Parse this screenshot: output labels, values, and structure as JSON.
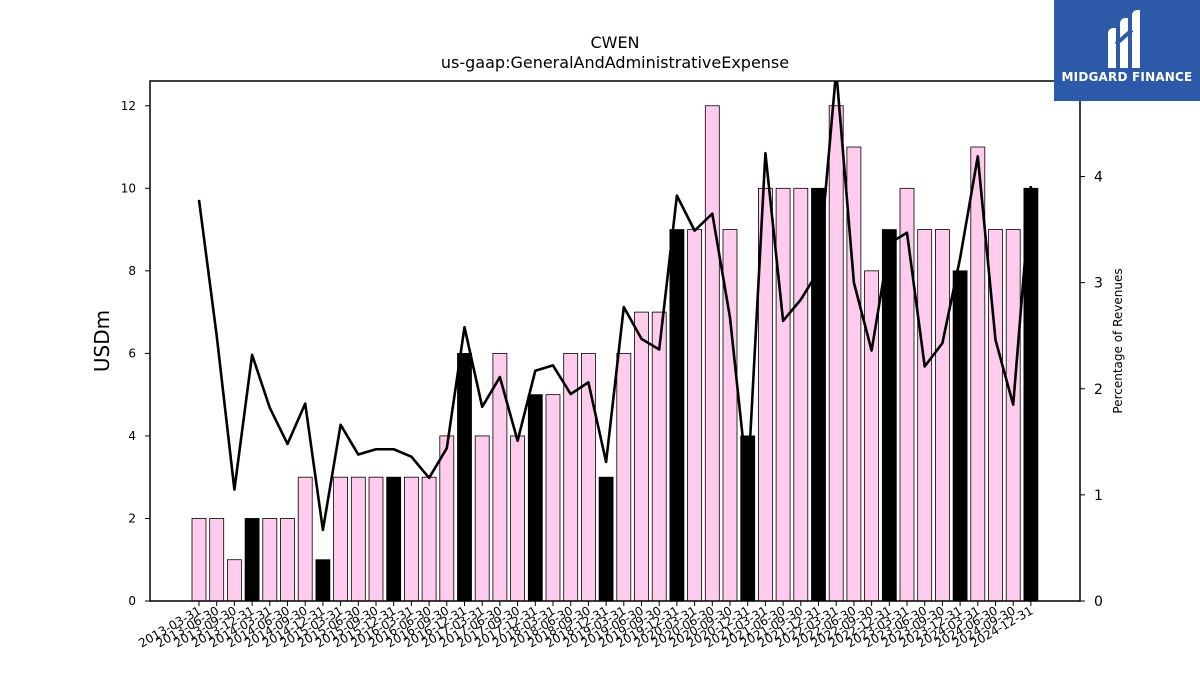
{
  "chart_data": {
    "type": "bar",
    "title": "CWEN",
    "subtitle": "us-gaap:GeneralAndAdministrativeExpense",
    "ylabel": "USDm",
    "y2label": "Percentage of Revenues",
    "ylim": [
      0,
      12.6
    ],
    "y2lim": [
      0,
      4.9
    ],
    "yticks": [
      0,
      2,
      4,
      6,
      8,
      10,
      12
    ],
    "y2ticks": [
      0,
      1,
      2,
      3,
      4
    ],
    "grid": false,
    "categories": [
      "2013-03-31",
      "2013-06-30",
      "2013-09-30",
      "2013-12-31",
      "2014-03-31",
      "2014-06-30",
      "2014-09-30",
      "2014-12-31",
      "2015-03-31",
      "2015-06-30",
      "2015-09-30",
      "2015-12-31",
      "2016-03-31",
      "2016-06-30",
      "2016-09-30",
      "2016-12-31",
      "2017-03-31",
      "2017-06-30",
      "2017-09-30",
      "2017-12-31",
      "2018-03-31",
      "2018-06-30",
      "2018-09-30",
      "2018-12-31",
      "2019-03-31",
      "2019-06-30",
      "2019-09-30",
      "2019-12-31",
      "2020-03-31",
      "2020-06-30",
      "2020-09-30",
      "2020-12-31",
      "2021-03-31",
      "2021-06-30",
      "2021-09-30",
      "2021-12-31",
      "2022-03-31",
      "2022-06-30",
      "2022-09-30",
      "2022-12-31",
      "2023-03-31",
      "2023-06-30",
      "2023-09-30",
      "2023-12-31",
      "2024-03-31",
      "2024-06-30",
      "2024-09-30",
      "2024-12-31"
    ],
    "series": [
      {
        "type": "bar",
        "axis": "left",
        "values": [
          2,
          2,
          1,
          2,
          2,
          2,
          3,
          1,
          3,
          3,
          3,
          3,
          3,
          3,
          4,
          6,
          4,
          6,
          4,
          5,
          5,
          6,
          6,
          3,
          6,
          7,
          7,
          9,
          9,
          12,
          9,
          4,
          10,
          10,
          10,
          10,
          12,
          11,
          8,
          9,
          10,
          9,
          9,
          8,
          11,
          9,
          9,
          10
        ],
        "highlight": [
          false,
          false,
          false,
          true,
          false,
          false,
          false,
          true,
          false,
          false,
          false,
          true,
          false,
          false,
          false,
          true,
          false,
          false,
          false,
          true,
          false,
          false,
          false,
          true,
          false,
          false,
          false,
          true,
          false,
          false,
          false,
          true,
          false,
          false,
          false,
          true,
          false,
          false,
          false,
          true,
          false,
          false,
          false,
          true,
          false,
          false,
          false,
          true
        ],
        "color": "#ffccee",
        "highlight_color": "#000000"
      },
      {
        "type": "line",
        "axis": "right",
        "values": [
          3.78,
          2.5,
          1.05,
          2.32,
          1.82,
          1.48,
          1.86,
          0.67,
          1.66,
          1.38,
          1.43,
          1.43,
          1.36,
          1.16,
          1.44,
          2.58,
          1.83,
          2.11,
          1.51,
          2.17,
          2.22,
          1.95,
          2.06,
          1.31,
          2.77,
          2.47,
          2.37,
          3.82,
          3.49,
          3.65,
          2.67,
          1.1,
          4.22,
          2.64,
          2.84,
          3.11,
          5.0,
          3.0,
          2.36,
          3.37,
          3.47,
          2.21,
          2.43,
          3.23,
          4.19,
          2.46,
          1.85,
          3.91
        ],
        "color": "#000000"
      }
    ]
  },
  "logo": {
    "text": "MIDGARD FINANCE",
    "color": "#2d5aa8"
  }
}
